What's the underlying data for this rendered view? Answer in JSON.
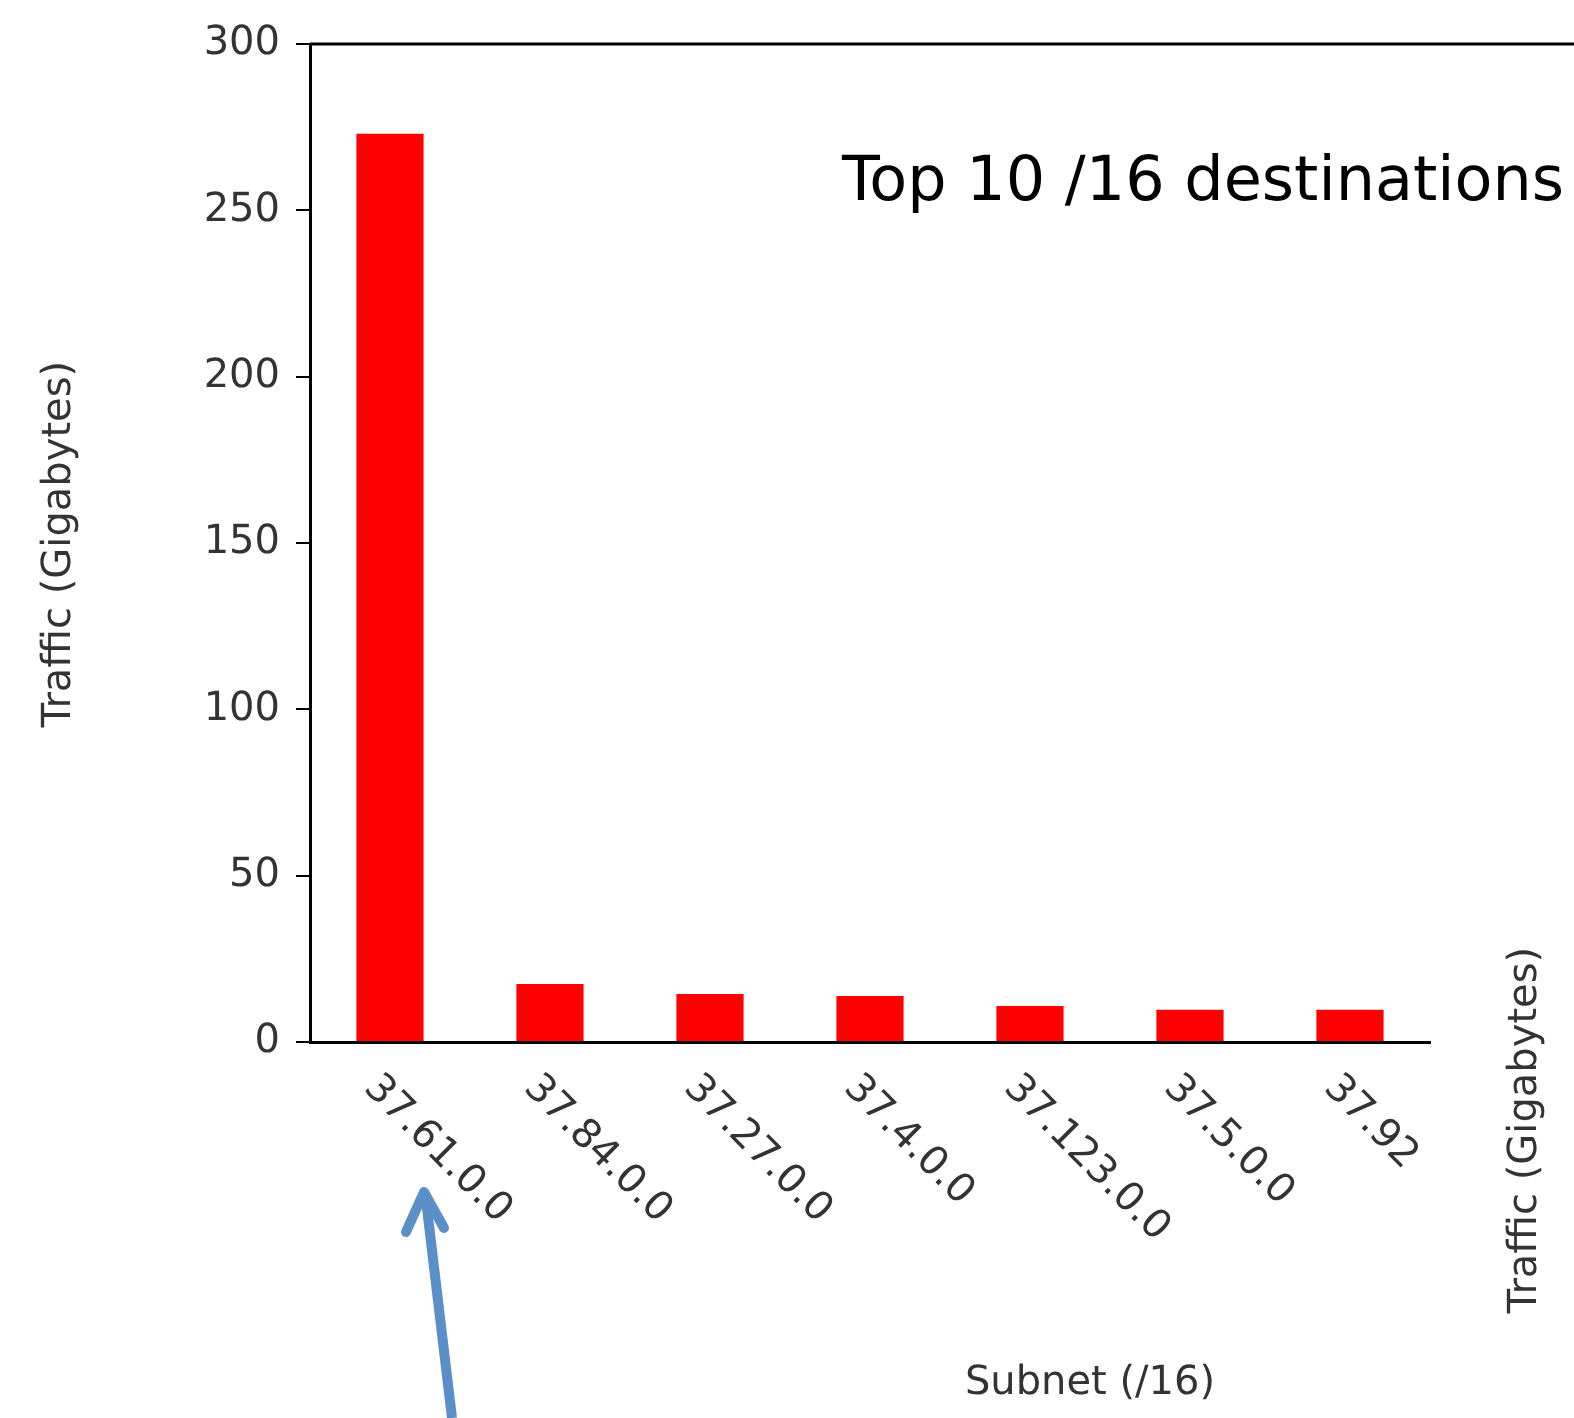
{
  "chart_data": {
    "type": "bar",
    "title": "Top 10 /16 destinations",
    "xlabel": "Subnet (/16)",
    "ylabel": "Traffic (Gigabytes)",
    "annotations": [
      "Traffic (Gigabytes)"
    ],
    "categories": [
      "37.61.0.0",
      "37.84.0.0",
      "37.27.0.0",
      "37.4.0.0",
      "37.123.0.0",
      "37.5.0.0",
      "37.92"
    ],
    "values": [
      273,
      17.4,
      14.4,
      13.8,
      10.8,
      9.7,
      9.7
    ],
    "color": "#ff0000",
    "ylim": [
      0,
      300
    ],
    "yticks": [
      0,
      50,
      100,
      150,
      200,
      250,
      300
    ]
  }
}
